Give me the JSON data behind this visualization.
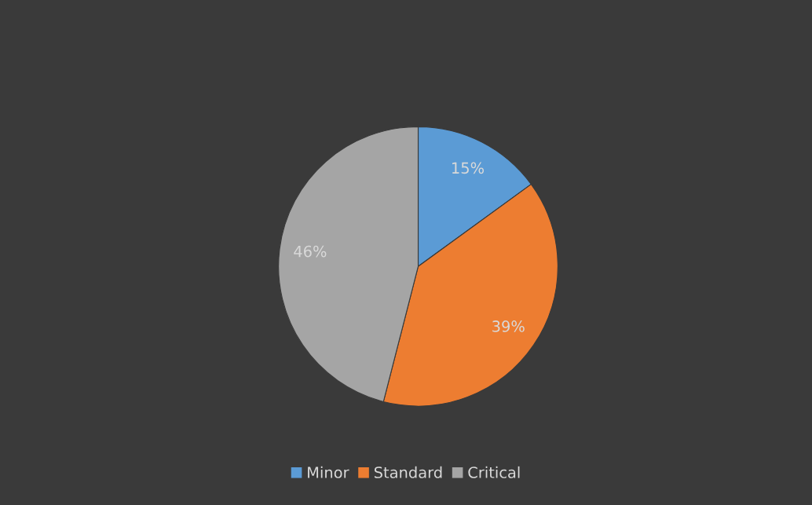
{
  "chart_data": {
    "type": "pie",
    "categories": [
      "Minor",
      "Standard",
      "Critical"
    ],
    "values": [
      15,
      39,
      46
    ],
    "colors": [
      "#5b9bd5",
      "#ed7d31",
      "#a5a5a5"
    ],
    "value_labels": [
      "15%",
      "39%",
      "46%"
    ],
    "legend": "bottom"
  }
}
